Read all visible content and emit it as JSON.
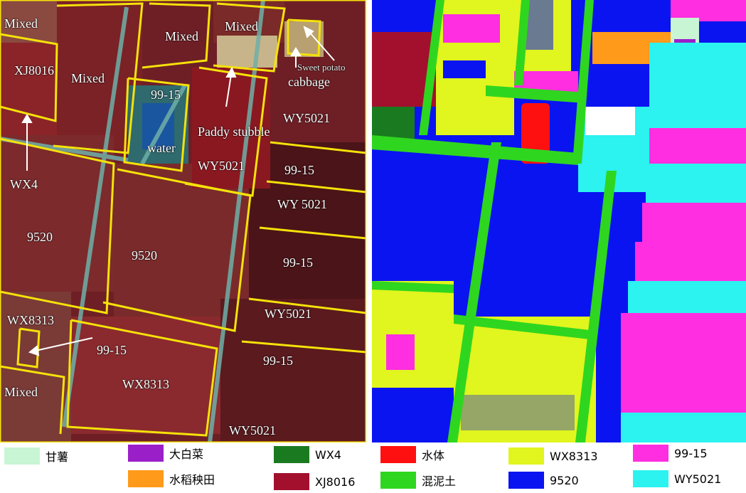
{
  "left_image": {
    "labels": {
      "mixed_top_left": "Mixed",
      "mixed_top_mid": "Mixed",
      "mixed_top_right": "Mixed",
      "xj8016": "XJ8016",
      "mixed_left2": "Mixed",
      "sweet_potato": "Sweet potato",
      "cabbage": "cabbage",
      "p9915_top": "99-15",
      "wy5021_top_right": "WY5021",
      "paddy_stubble": "Paddy stubble",
      "water": "water",
      "wy5021_mid": "WY5021",
      "p9915_right1": "99-15",
      "wy_5021_right": "WY  5021",
      "wx4": "WX4",
      "n9520_left": "9520",
      "n9520_mid": "9520",
      "p9915_right2": "99-15",
      "wy5021_right2": "WY5021",
      "wx8313_left": "WX8313",
      "p9915_bottom": "99-15",
      "p9915_right3": "99-15",
      "mixed_bottom": "Mixed",
      "wx8313_bottom": "WX8313",
      "wy5021_bottom": "WY5021"
    }
  },
  "legend": [
    {
      "label": "甘薯",
      "color": "#c8f5d4"
    },
    {
      "label": "大白菜",
      "color": "#9b1fc9"
    },
    {
      "label": "WX4",
      "color": "#1a7a1f"
    },
    {
      "label": "水体",
      "color": "#ff1010"
    },
    {
      "label": "WX8313",
      "color": "#e1f51e"
    },
    {
      "label": "99-15",
      "color": "#ff2ee0"
    },
    {
      "label": "水稻秧田",
      "color": "#ff9a1a"
    },
    {
      "label": "XJ8016",
      "color": "#a3102e"
    },
    {
      "label": "混泥土",
      "color": "#2fd61f"
    },
    {
      "label": "9520",
      "color": "#0a14f0"
    },
    {
      "label": "WY5021",
      "color": "#2cf2f0"
    }
  ]
}
